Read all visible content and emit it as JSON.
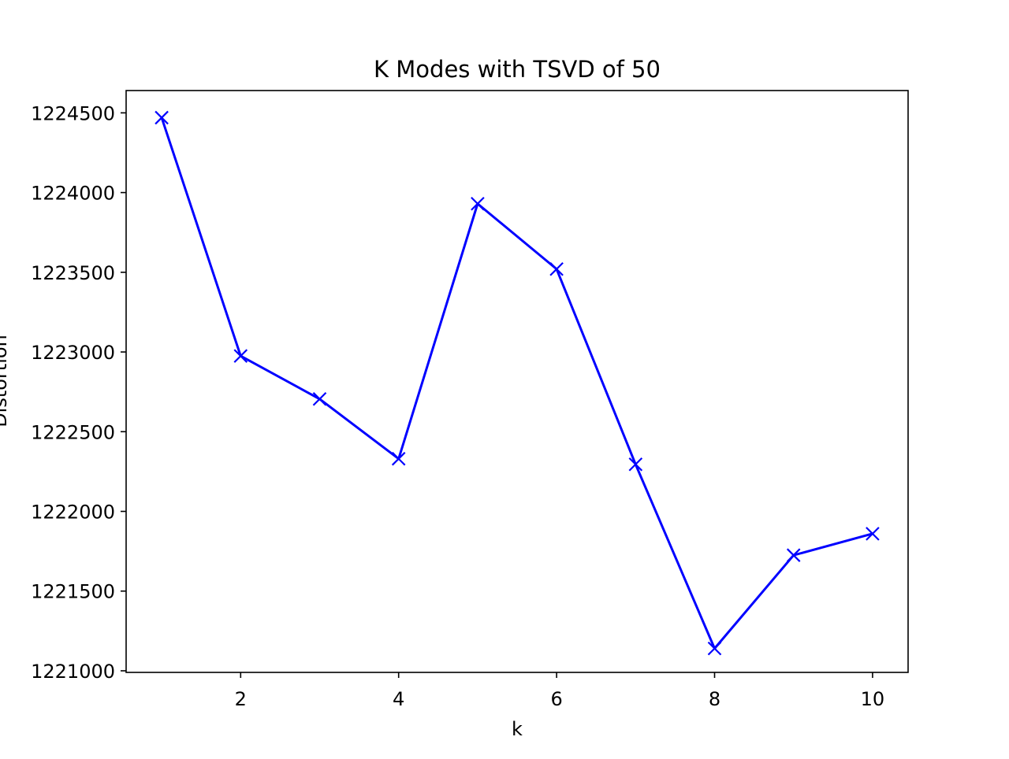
{
  "chart_data": {
    "type": "line",
    "title": "K Modes with TSVD of 50",
    "xlabel": "k",
    "ylabel": "Distortion",
    "xlim": [
      0.55,
      10.45
    ],
    "ylim": [
      1220990,
      1224640
    ],
    "xticks": [
      2,
      4,
      6,
      8,
      10
    ],
    "yticks": [
      1221000,
      1221500,
      1222000,
      1222500,
      1223000,
      1223500,
      1224000,
      1224500
    ],
    "grid": false,
    "legend": "none",
    "series": [
      {
        "color": "#0000ff",
        "marker": "x",
        "x": [
          1,
          2,
          3,
          4,
          5,
          6,
          7,
          8,
          9,
          10
        ],
        "y": [
          1224470,
          1222975,
          1222705,
          1222330,
          1223930,
          1223520,
          1222295,
          1221140,
          1221725,
          1221860
        ]
      }
    ]
  }
}
